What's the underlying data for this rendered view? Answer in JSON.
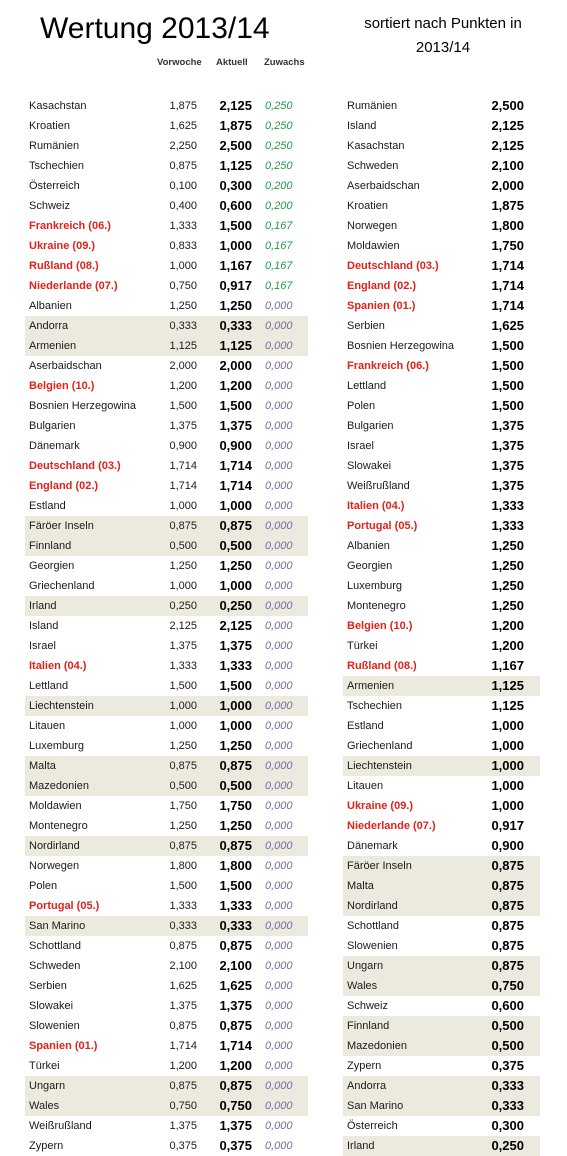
{
  "title": "Wertung 2013/14",
  "subtitle": "sortiert nach Punkten in 2013/14",
  "headers": {
    "prev": "Vorwoche",
    "curr": "Aktuell",
    "gain": "Zuwachs"
  },
  "colors": {
    "red": "#e0221b",
    "green": "#1e9e46",
    "purple": "#7a6a9e",
    "highlight": "#eceadf"
  },
  "left": [
    {
      "name": "Kasachstan",
      "prev": "1,875",
      "curr": "2,125",
      "gain": "0,250",
      "red": false,
      "hl": false
    },
    {
      "name": "Kroatien",
      "prev": "1,625",
      "curr": "1,875",
      "gain": "0,250",
      "red": false,
      "hl": false
    },
    {
      "name": "Rumänien",
      "prev": "2,250",
      "curr": "2,500",
      "gain": "0,250",
      "red": false,
      "hl": false
    },
    {
      "name": "Tschechien",
      "prev": "0,875",
      "curr": "1,125",
      "gain": "0,250",
      "red": false,
      "hl": false
    },
    {
      "name": "Österreich",
      "prev": "0,100",
      "curr": "0,300",
      "gain": "0,200",
      "red": false,
      "hl": false
    },
    {
      "name": "Schweiz",
      "prev": "0,400",
      "curr": "0,600",
      "gain": "0,200",
      "red": false,
      "hl": false
    },
    {
      "name": "Frankreich (06.)",
      "prev": "1,333",
      "curr": "1,500",
      "gain": "0,167",
      "red": true,
      "hl": false
    },
    {
      "name": "Ukraine (09.)",
      "prev": "0,833",
      "curr": "1,000",
      "gain": "0,167",
      "red": true,
      "hl": false
    },
    {
      "name": "Rußland (08.)",
      "prev": "1,000",
      "curr": "1,167",
      "gain": "0,167",
      "red": true,
      "hl": false
    },
    {
      "name": "Niederlande (07.)",
      "prev": "0,750",
      "curr": "0,917",
      "gain": "0,167",
      "red": true,
      "hl": false
    },
    {
      "name": "Albanien",
      "prev": "1,250",
      "curr": "1,250",
      "gain": "0,000",
      "red": false,
      "hl": false
    },
    {
      "name": "Andorra",
      "prev": "0,333",
      "curr": "0,333",
      "gain": "0,000",
      "red": false,
      "hl": true
    },
    {
      "name": "Armenien",
      "prev": "1,125",
      "curr": "1,125",
      "gain": "0,000",
      "red": false,
      "hl": true
    },
    {
      "name": "Aserbaidschan",
      "prev": "2,000",
      "curr": "2,000",
      "gain": "0,000",
      "red": false,
      "hl": false
    },
    {
      "name": "Belgien (10.)",
      "prev": "1,200",
      "curr": "1,200",
      "gain": "0,000",
      "red": true,
      "hl": false
    },
    {
      "name": "Bosnien Herzegowina",
      "prev": "1,500",
      "curr": "1,500",
      "gain": "0,000",
      "red": false,
      "hl": false
    },
    {
      "name": "Bulgarien",
      "prev": "1,375",
      "curr": "1,375",
      "gain": "0,000",
      "red": false,
      "hl": false
    },
    {
      "name": "Dänemark",
      "prev": "0,900",
      "curr": "0,900",
      "gain": "0,000",
      "red": false,
      "hl": false
    },
    {
      "name": "Deutschland (03.)",
      "prev": "1,714",
      "curr": "1,714",
      "gain": "0,000",
      "red": true,
      "hl": false
    },
    {
      "name": "England (02.)",
      "prev": "1,714",
      "curr": "1,714",
      "gain": "0,000",
      "red": true,
      "hl": false
    },
    {
      "name": "Estland",
      "prev": "1,000",
      "curr": "1,000",
      "gain": "0,000",
      "red": false,
      "hl": false
    },
    {
      "name": "Färöer Inseln",
      "prev": "0,875",
      "curr": "0,875",
      "gain": "0,000",
      "red": false,
      "hl": true
    },
    {
      "name": "Finnland",
      "prev": "0,500",
      "curr": "0,500",
      "gain": "0,000",
      "red": false,
      "hl": true
    },
    {
      "name": "Georgien",
      "prev": "1,250",
      "curr": "1,250",
      "gain": "0,000",
      "red": false,
      "hl": false
    },
    {
      "name": "Griechenland",
      "prev": "1,000",
      "curr": "1,000",
      "gain": "0,000",
      "red": false,
      "hl": false
    },
    {
      "name": "Irland",
      "prev": "0,250",
      "curr": "0,250",
      "gain": "0,000",
      "red": false,
      "hl": true
    },
    {
      "name": "Island",
      "prev": "2,125",
      "curr": "2,125",
      "gain": "0,000",
      "red": false,
      "hl": false
    },
    {
      "name": "Israel",
      "prev": "1,375",
      "curr": "1,375",
      "gain": "0,000",
      "red": false,
      "hl": false
    },
    {
      "name": "Italien (04.)",
      "prev": "1,333",
      "curr": "1,333",
      "gain": "0,000",
      "red": true,
      "hl": false
    },
    {
      "name": "Lettland",
      "prev": "1,500",
      "curr": "1,500",
      "gain": "0,000",
      "red": false,
      "hl": false
    },
    {
      "name": "Liechtenstein",
      "prev": "1,000",
      "curr": "1,000",
      "gain": "0,000",
      "red": false,
      "hl": true
    },
    {
      "name": "Litauen",
      "prev": "1,000",
      "curr": "1,000",
      "gain": "0,000",
      "red": false,
      "hl": false
    },
    {
      "name": "Luxemburg",
      "prev": "1,250",
      "curr": "1,250",
      "gain": "0,000",
      "red": false,
      "hl": false
    },
    {
      "name": "Malta",
      "prev": "0,875",
      "curr": "0,875",
      "gain": "0,000",
      "red": false,
      "hl": true
    },
    {
      "name": "Mazedonien",
      "prev": "0,500",
      "curr": "0,500",
      "gain": "0,000",
      "red": false,
      "hl": true
    },
    {
      "name": "Moldawien",
      "prev": "1,750",
      "curr": "1,750",
      "gain": "0,000",
      "red": false,
      "hl": false
    },
    {
      "name": "Montenegro",
      "prev": "1,250",
      "curr": "1,250",
      "gain": "0,000",
      "red": false,
      "hl": false
    },
    {
      "name": "Nordirland",
      "prev": "0,875",
      "curr": "0,875",
      "gain": "0,000",
      "red": false,
      "hl": true
    },
    {
      "name": "Norwegen",
      "prev": "1,800",
      "curr": "1,800",
      "gain": "0,000",
      "red": false,
      "hl": false
    },
    {
      "name": "Polen",
      "prev": "1,500",
      "curr": "1,500",
      "gain": "0,000",
      "red": false,
      "hl": false
    },
    {
      "name": "Portugal (05.)",
      "prev": "1,333",
      "curr": "1,333",
      "gain": "0,000",
      "red": true,
      "hl": false
    },
    {
      "name": "San Marino",
      "prev": "0,333",
      "curr": "0,333",
      "gain": "0,000",
      "red": false,
      "hl": true
    },
    {
      "name": "Schottland",
      "prev": "0,875",
      "curr": "0,875",
      "gain": "0,000",
      "red": false,
      "hl": false
    },
    {
      "name": "Schweden",
      "prev": "2,100",
      "curr": "2,100",
      "gain": "0,000",
      "red": false,
      "hl": false
    },
    {
      "name": "Serbien",
      "prev": "1,625",
      "curr": "1,625",
      "gain": "0,000",
      "red": false,
      "hl": false
    },
    {
      "name": "Slowakei",
      "prev": "1,375",
      "curr": "1,375",
      "gain": "0,000",
      "red": false,
      "hl": false
    },
    {
      "name": "Slowenien",
      "prev": "0,875",
      "curr": "0,875",
      "gain": "0,000",
      "red": false,
      "hl": false
    },
    {
      "name": "Spanien (01.)",
      "prev": "1,714",
      "curr": "1,714",
      "gain": "0,000",
      "red": true,
      "hl": false
    },
    {
      "name": "Türkei",
      "prev": "1,200",
      "curr": "1,200",
      "gain": "0,000",
      "red": false,
      "hl": false
    },
    {
      "name": "Ungarn",
      "prev": "0,875",
      "curr": "0,875",
      "gain": "0,000",
      "red": false,
      "hl": true
    },
    {
      "name": "Wales",
      "prev": "0,750",
      "curr": "0,750",
      "gain": "0,000",
      "red": false,
      "hl": true
    },
    {
      "name": "Weißrußland",
      "prev": "1,375",
      "curr": "1,375",
      "gain": "0,000",
      "red": false,
      "hl": false
    },
    {
      "name": "Zypern",
      "prev": "0,375",
      "curr": "0,375",
      "gain": "0,000",
      "red": false,
      "hl": false
    }
  ],
  "right": [
    {
      "name": "Rumänien",
      "curr": "2,500",
      "red": false,
      "hl": false
    },
    {
      "name": "Island",
      "curr": "2,125",
      "red": false,
      "hl": false
    },
    {
      "name": "Kasachstan",
      "curr": "2,125",
      "red": false,
      "hl": false
    },
    {
      "name": "Schweden",
      "curr": "2,100",
      "red": false,
      "hl": false
    },
    {
      "name": "Aserbaidschan",
      "curr": "2,000",
      "red": false,
      "hl": false
    },
    {
      "name": "Kroatien",
      "curr": "1,875",
      "red": false,
      "hl": false
    },
    {
      "name": "Norwegen",
      "curr": "1,800",
      "red": false,
      "hl": false
    },
    {
      "name": "Moldawien",
      "curr": "1,750",
      "red": false,
      "hl": false
    },
    {
      "name": "Deutschland (03.)",
      "curr": "1,714",
      "red": true,
      "hl": false
    },
    {
      "name": "England (02.)",
      "curr": "1,714",
      "red": true,
      "hl": false
    },
    {
      "name": "Spanien (01.)",
      "curr": "1,714",
      "red": true,
      "hl": false
    },
    {
      "name": "Serbien",
      "curr": "1,625",
      "red": false,
      "hl": false
    },
    {
      "name": "Bosnien Herzegowina",
      "curr": "1,500",
      "red": false,
      "hl": false
    },
    {
      "name": "Frankreich (06.)",
      "curr": "1,500",
      "red": true,
      "hl": false
    },
    {
      "name": "Lettland",
      "curr": "1,500",
      "red": false,
      "hl": false
    },
    {
      "name": "Polen",
      "curr": "1,500",
      "red": false,
      "hl": false
    },
    {
      "name": "Bulgarien",
      "curr": "1,375",
      "red": false,
      "hl": false
    },
    {
      "name": "Israel",
      "curr": "1,375",
      "red": false,
      "hl": false
    },
    {
      "name": "Slowakei",
      "curr": "1,375",
      "red": false,
      "hl": false
    },
    {
      "name": "Weißrußland",
      "curr": "1,375",
      "red": false,
      "hl": false
    },
    {
      "name": "Italien (04.)",
      "curr": "1,333",
      "red": true,
      "hl": false
    },
    {
      "name": "Portugal (05.)",
      "curr": "1,333",
      "red": true,
      "hl": false
    },
    {
      "name": "Albanien",
      "curr": "1,250",
      "red": false,
      "hl": false
    },
    {
      "name": "Georgien",
      "curr": "1,250",
      "red": false,
      "hl": false
    },
    {
      "name": "Luxemburg",
      "curr": "1,250",
      "red": false,
      "hl": false
    },
    {
      "name": "Montenegro",
      "curr": "1,250",
      "red": false,
      "hl": false
    },
    {
      "name": "Belgien (10.)",
      "curr": "1,200",
      "red": true,
      "hl": false
    },
    {
      "name": "Türkei",
      "curr": "1,200",
      "red": false,
      "hl": false
    },
    {
      "name": "Rußland (08.)",
      "curr": "1,167",
      "red": true,
      "hl": false
    },
    {
      "name": "Armenien",
      "curr": "1,125",
      "red": false,
      "hl": true
    },
    {
      "name": "Tschechien",
      "curr": "1,125",
      "red": false,
      "hl": false
    },
    {
      "name": "Estland",
      "curr": "1,000",
      "red": false,
      "hl": false
    },
    {
      "name": "Griechenland",
      "curr": "1,000",
      "red": false,
      "hl": false
    },
    {
      "name": "Liechtenstein",
      "curr": "1,000",
      "red": false,
      "hl": true
    },
    {
      "name": "Litauen",
      "curr": "1,000",
      "red": false,
      "hl": false
    },
    {
      "name": "Ukraine (09.)",
      "curr": "1,000",
      "red": true,
      "hl": false
    },
    {
      "name": "Niederlande (07.)",
      "curr": "0,917",
      "red": true,
      "hl": false
    },
    {
      "name": "Dänemark",
      "curr": "0,900",
      "red": false,
      "hl": false
    },
    {
      "name": "Färöer Inseln",
      "curr": "0,875",
      "red": false,
      "hl": true
    },
    {
      "name": "Malta",
      "curr": "0,875",
      "red": false,
      "hl": true
    },
    {
      "name": "Nordirland",
      "curr": "0,875",
      "red": false,
      "hl": true
    },
    {
      "name": "Schottland",
      "curr": "0,875",
      "red": false,
      "hl": false
    },
    {
      "name": "Slowenien",
      "curr": "0,875",
      "red": false,
      "hl": false
    },
    {
      "name": "Ungarn",
      "curr": "0,875",
      "red": false,
      "hl": true
    },
    {
      "name": "Wales",
      "curr": "0,750",
      "red": false,
      "hl": true
    },
    {
      "name": "Schweiz",
      "curr": "0,600",
      "red": false,
      "hl": false
    },
    {
      "name": "Finnland",
      "curr": "0,500",
      "red": false,
      "hl": true
    },
    {
      "name": "Mazedonien",
      "curr": "0,500",
      "red": false,
      "hl": true
    },
    {
      "name": "Zypern",
      "curr": "0,375",
      "red": false,
      "hl": false
    },
    {
      "name": "Andorra",
      "curr": "0,333",
      "red": false,
      "hl": true
    },
    {
      "name": "San Marino",
      "curr": "0,333",
      "red": false,
      "hl": true
    },
    {
      "name": "Österreich",
      "curr": "0,300",
      "red": false,
      "hl": false
    },
    {
      "name": "Irland",
      "curr": "0,250",
      "red": false,
      "hl": true
    }
  ]
}
